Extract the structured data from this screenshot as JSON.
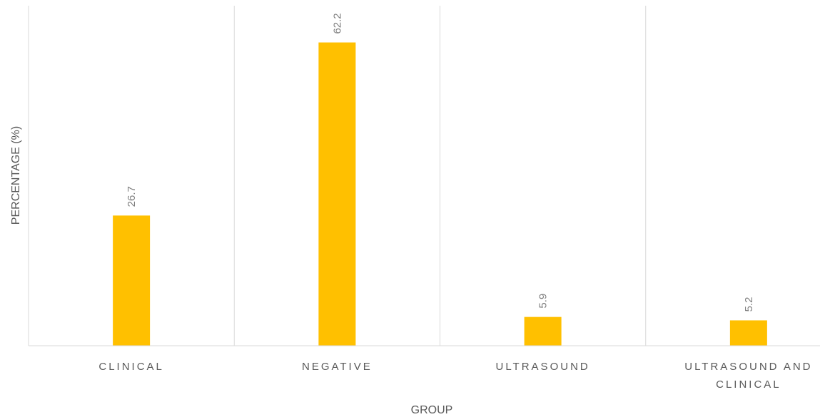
{
  "chart_data": {
    "type": "bar",
    "categories": [
      "CLINICAL",
      "NEGATIVE",
      "ULTRASOUND",
      "ULTRASOUND AND CLINICAL"
    ],
    "category_lines": [
      [
        "CLINICAL"
      ],
      [
        "NEGATIVE"
      ],
      [
        "ULTRASOUND"
      ],
      [
        "ULTRASOUND AND",
        "CLINICAL"
      ]
    ],
    "values": [
      26.7,
      62.2,
      5.9,
      5.2
    ],
    "data_labels": [
      "26.7",
      "62.2",
      "5.9",
      "5.2"
    ],
    "title": "",
    "xlabel": "GROUP",
    "ylabel": "PERCENTAGE (%)",
    "ylim": [
      0,
      70
    ],
    "grid": "vertical category separators",
    "legend": "none",
    "bar_color": "#FFC000",
    "gridline_color": "#d9d9d9",
    "text_color": "#595959",
    "data_label_color": "#7f7f7f"
  }
}
